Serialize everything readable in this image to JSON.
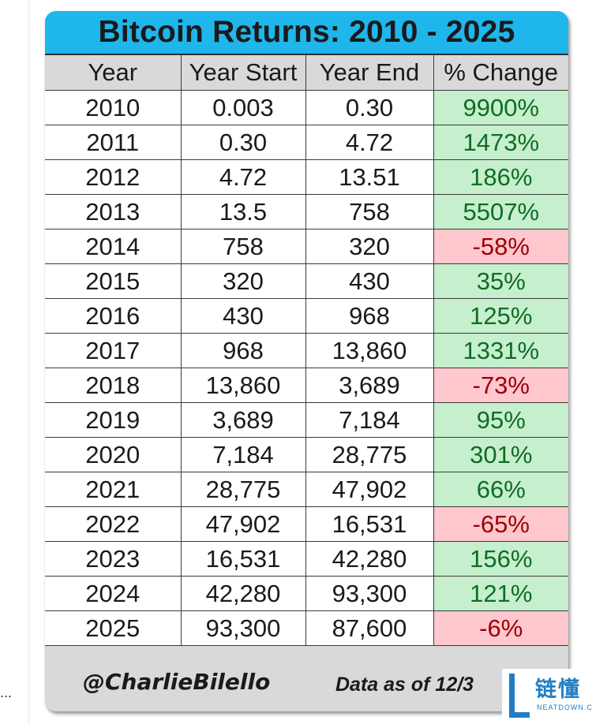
{
  "chart_data": {
    "type": "table",
    "title": "Bitcoin Returns: 2010 - 2025",
    "columns": [
      "Year",
      "Year Start",
      "Year End",
      "% Change"
    ],
    "rows": [
      {
        "year": "2010",
        "start": "0.003",
        "end": "0.30",
        "change": "9900%",
        "sign": "pos"
      },
      {
        "year": "2011",
        "start": "0.30",
        "end": "4.72",
        "change": "1473%",
        "sign": "pos"
      },
      {
        "year": "2012",
        "start": "4.72",
        "end": "13.51",
        "change": "186%",
        "sign": "pos"
      },
      {
        "year": "2013",
        "start": "13.5",
        "end": "758",
        "change": "5507%",
        "sign": "pos"
      },
      {
        "year": "2014",
        "start": "758",
        "end": "320",
        "change": "-58%",
        "sign": "neg"
      },
      {
        "year": "2015",
        "start": "320",
        "end": "430",
        "change": "35%",
        "sign": "pos"
      },
      {
        "year": "2016",
        "start": "430",
        "end": "968",
        "change": "125%",
        "sign": "pos"
      },
      {
        "year": "2017",
        "start": "968",
        "end": "13,860",
        "change": "1331%",
        "sign": "pos"
      },
      {
        "year": "2018",
        "start": "13,860",
        "end": "3,689",
        "change": "-73%",
        "sign": "neg"
      },
      {
        "year": "2019",
        "start": "3,689",
        "end": "7,184",
        "change": "95%",
        "sign": "pos"
      },
      {
        "year": "2020",
        "start": "7,184",
        "end": "28,775",
        "change": "301%",
        "sign": "pos"
      },
      {
        "year": "2021",
        "start": "28,775",
        "end": "47,902",
        "change": "66%",
        "sign": "pos"
      },
      {
        "year": "2022",
        "start": "47,902",
        "end": "16,531",
        "change": "-65%",
        "sign": "neg"
      },
      {
        "year": "2023",
        "start": "16,531",
        "end": "42,280",
        "change": "156%",
        "sign": "pos"
      },
      {
        "year": "2024",
        "start": "42,280",
        "end": "93,300",
        "change": "121%",
        "sign": "pos"
      },
      {
        "year": "2025",
        "start": "93,300",
        "end": "87,600",
        "change": "-6%",
        "sign": "neg"
      }
    ],
    "colors": {
      "title_bar": "#1fb6ec",
      "positive_fill": "#c6efce",
      "positive_text": "#0e6d22",
      "negative_fill": "#ffc7ce",
      "negative_text": "#9c0006"
    }
  },
  "footer": {
    "handle": "@CharlieBilello",
    "as_of": "Data as of 12/3"
  },
  "watermark": {
    "text": "链懂",
    "sub": "NEATDOWN.COM"
  },
  "overflow_marker": "..."
}
